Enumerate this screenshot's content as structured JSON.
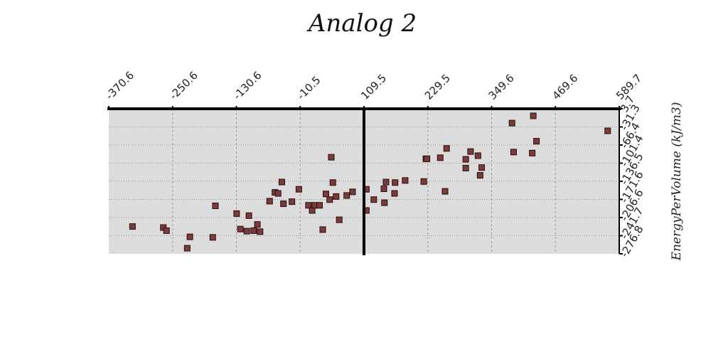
{
  "chart_data": {
    "type": "scatter",
    "title": "Analog 2",
    "xlabel": "",
    "ylabel": "EnergyPerVolume (kJ/m3)",
    "x_ticks": [
      "-370.6",
      "-250.6",
      "-130.6",
      "-10.5",
      "109.5",
      "229.5",
      "349.6",
      "469.6",
      "589.7"
    ],
    "y_ticks": [
      "3.7",
      "-31.3",
      "-66.4",
      "-101.4",
      "-136.5",
      "-171.6",
      "-206.6",
      "-241.7",
      "-276.8"
    ],
    "xlim": [
      -370.6,
      589.7
    ],
    "ylim": [
      -276.8,
      3.7
    ],
    "x_axis_position": "top",
    "y_axis_position": "right",
    "zero_line_x": 109.5,
    "grid": true,
    "legend": "none",
    "colors": {
      "plot_bg": "#dcdcdc",
      "marker_fill": "#7a3b3b",
      "marker_stroke": "#2a0d0d",
      "grid": "#999999"
    },
    "series": [
      {
        "points": [
          {
            "x": -326,
            "y": -224
          },
          {
            "x": -268,
            "y": -226
          },
          {
            "x": -262,
            "y": -232
          },
          {
            "x": -218,
            "y": -244
          },
          {
            "x": -175,
            "y": -245
          },
          {
            "x": -223,
            "y": -266
          },
          {
            "x": -170,
            "y": -184
          },
          {
            "x": -130,
            "y": -199
          },
          {
            "x": -107,
            "y": -203
          },
          {
            "x": -91,
            "y": -220
          },
          {
            "x": -123,
            "y": -229
          },
          {
            "x": -111,
            "y": -233
          },
          {
            "x": -98,
            "y": -232
          },
          {
            "x": -86,
            "y": -234
          },
          {
            "x": -68,
            "y": -175
          },
          {
            "x": -58,
            "y": -158
          },
          {
            "x": -52,
            "y": -160
          },
          {
            "x": -45,
            "y": -138
          },
          {
            "x": -42,
            "y": -180
          },
          {
            "x": -26,
            "y": -176
          },
          {
            "x": -13,
            "y": -152
          },
          {
            "x": 5,
            "y": -183
          },
          {
            "x": 12,
            "y": -193
          },
          {
            "x": 17,
            "y": -183
          },
          {
            "x": 26,
            "y": -183
          },
          {
            "x": 32,
            "y": -230
          },
          {
            "x": 38,
            "y": -161
          },
          {
            "x": 45,
            "y": -172
          },
          {
            "x": 48,
            "y": -90
          },
          {
            "x": 51,
            "y": -139
          },
          {
            "x": 57,
            "y": -166
          },
          {
            "x": 63,
            "y": -211
          },
          {
            "x": 77,
            "y": -164
          },
          {
            "x": 88,
            "y": -157
          },
          {
            "x": 114,
            "y": -193
          },
          {
            "x": 114,
            "y": -152
          },
          {
            "x": 128,
            "y": -172
          },
          {
            "x": 147,
            "y": -151
          },
          {
            "x": 148,
            "y": -178
          },
          {
            "x": 151,
            "y": -138
          },
          {
            "x": 167,
            "y": -160
          },
          {
            "x": 168,
            "y": -139
          },
          {
            "x": 187,
            "y": -135
          },
          {
            "x": 222,
            "y": -137
          },
          {
            "x": 226,
            "y": -93
          },
          {
            "x": 228,
            "y": -93
          },
          {
            "x": 253,
            "y": -91
          },
          {
            "x": 262,
            "y": -156
          },
          {
            "x": 265,
            "y": -73
          },
          {
            "x": 301,
            "y": -94
          },
          {
            "x": 301,
            "y": -111
          },
          {
            "x": 310,
            "y": -79
          },
          {
            "x": 324,
            "y": -87
          },
          {
            "x": 328,
            "y": -125
          },
          {
            "x": 331,
            "y": -110
          },
          {
            "x": 388,
            "y": -24
          },
          {
            "x": 391,
            "y": -80
          },
          {
            "x": 426,
            "y": -82
          },
          {
            "x": 428,
            "y": -10
          },
          {
            "x": 434,
            "y": -59
          },
          {
            "x": 568,
            "y": -39
          }
        ]
      }
    ]
  }
}
